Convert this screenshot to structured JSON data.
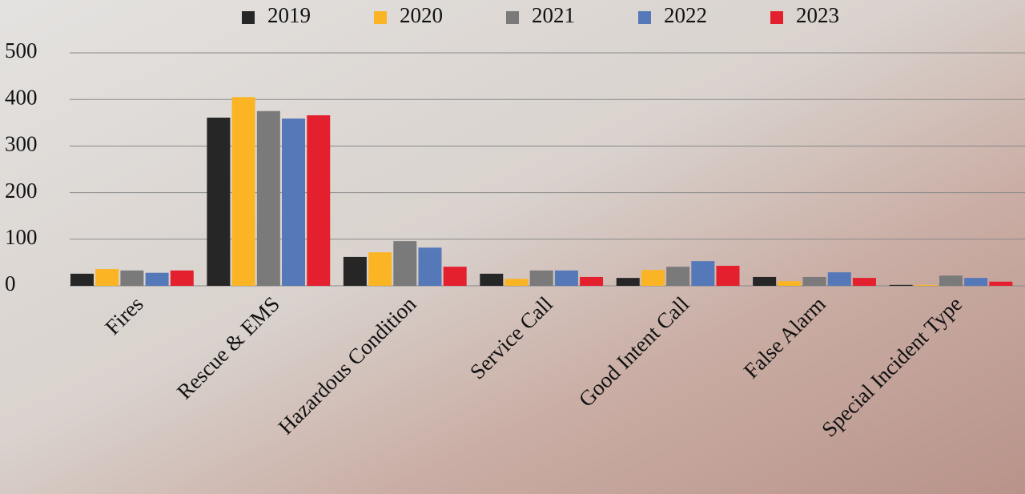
{
  "chart_data": {
    "type": "bar",
    "categories": [
      "Fires",
      "Rescue & EMS",
      "Hazardous Condition",
      "Service Call",
      "Good Intent Call",
      "False Alarm",
      "Special Incident Type"
    ],
    "series": [
      {
        "name": "2019",
        "color": "#262626",
        "values": [
          26,
          361,
          62,
          26,
          17,
          19,
          2
        ]
      },
      {
        "name": "2020",
        "color": "#fbb424",
        "values": [
          36,
          405,
          72,
          15,
          34,
          10,
          2
        ]
      },
      {
        "name": "2021",
        "color": "#7a7a7a",
        "values": [
          33,
          375,
          96,
          33,
          41,
          19,
          22
        ]
      },
      {
        "name": "2022",
        "color": "#5578b8",
        "values": [
          28,
          359,
          82,
          33,
          53,
          29,
          17
        ]
      },
      {
        "name": "2023",
        "color": "#e4202f",
        "values": [
          33,
          366,
          41,
          19,
          43,
          17,
          9
        ]
      }
    ],
    "ylim": [
      0,
      500
    ],
    "yticks": [
      0,
      100,
      200,
      300,
      400,
      500
    ],
    "grid": true,
    "legend": "top"
  }
}
